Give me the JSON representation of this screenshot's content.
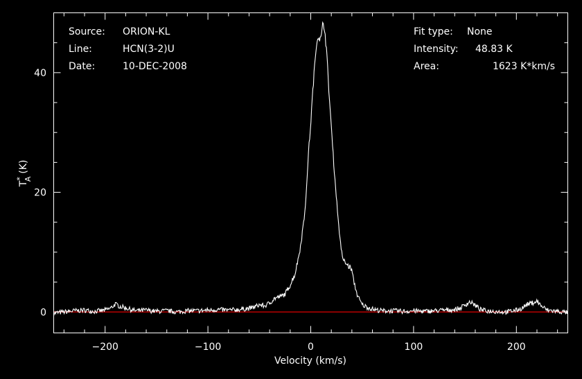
{
  "colors": {
    "background": "#000000",
    "foreground": "#ffffff",
    "spectrum": "#ffffff",
    "baseline": "#dd0000"
  },
  "info": {
    "source_label": "Source:",
    "source_value": "ORION-KL",
    "line_label": "Line:",
    "line_value": "HCN(3-2)U",
    "date_label": "Date:",
    "date_value": "10-DEC-2008",
    "fit_label": "Fit type:",
    "fit_value": "None",
    "intensity_label": "Intensity:",
    "intensity_value": "48.83 K",
    "area_label": "Area:",
    "area_value": "1623 K*km/s"
  },
  "chart_data": {
    "type": "line",
    "xlabel": "Velocity (km/s)",
    "ylabel": "T",
    "ylabel_sup": "*",
    "ylabel_sub": "A",
    "ylabel_unit": "(K)",
    "xlim": [
      -250,
      250
    ],
    "ylim": [
      -3.5,
      50
    ],
    "xticks": [
      -200,
      -100,
      0,
      100,
      200
    ],
    "xtick_labels": [
      "−200",
      "−100",
      "0",
      "100",
      "200"
    ],
    "yticks": [
      0,
      20,
      40
    ],
    "ytick_labels": [
      "0",
      "20",
      "40"
    ],
    "grid": false,
    "legend": "none",
    "baseline_y": 0,
    "series": [
      {
        "x": [
          -250,
          -240,
          -230,
          -220,
          -210,
          -200,
          -195,
          -190,
          -185,
          -180,
          -175,
          -170,
          -160,
          -150,
          -140,
          -130,
          -120,
          -110,
          -100,
          -90,
          -80,
          -70,
          -60,
          -55,
          -50,
          -45,
          -40,
          -35,
          -30,
          -25,
          -20,
          -15,
          -10,
          -8,
          -6,
          -4,
          -2,
          0,
          2,
          4,
          6,
          8,
          10,
          12,
          14,
          16,
          18,
          20,
          22,
          24,
          26,
          28,
          30,
          32,
          35,
          38,
          40,
          42,
          45,
          48,
          50,
          55,
          60,
          65,
          70,
          80,
          90,
          100,
          110,
          120,
          130,
          140,
          145,
          150,
          155,
          160,
          165,
          170,
          180,
          190,
          200,
          205,
          210,
          215,
          220,
          225,
          230,
          240,
          250
        ],
        "y": [
          -0.2,
          0.0,
          0.2,
          0.3,
          0.1,
          0.3,
          0.6,
          1.3,
          0.9,
          0.7,
          0.4,
          0.2,
          0.3,
          0.1,
          0.2,
          0.0,
          0.2,
          0.2,
          0.3,
          0.4,
          0.3,
          0.4,
          0.6,
          0.8,
          1.2,
          1.0,
          1.5,
          2.3,
          2.5,
          3.0,
          4.5,
          6.5,
          11.0,
          13.5,
          16.5,
          21.0,
          27.0,
          31.5,
          37.0,
          41.5,
          45.5,
          46.0,
          45.5,
          48.8,
          46.5,
          42.0,
          36.0,
          31.0,
          26.0,
          21.0,
          17.0,
          13.0,
          10.0,
          8.5,
          8.0,
          7.5,
          7.0,
          5.0,
          3.0,
          1.8,
          1.2,
          0.8,
          0.5,
          0.3,
          0.2,
          0.2,
          0.1,
          0.2,
          0.1,
          0.2,
          0.3,
          0.4,
          0.6,
          1.2,
          1.7,
          1.1,
          0.4,
          0.2,
          0.1,
          0.0,
          0.3,
          0.6,
          1.2,
          1.5,
          1.8,
          0.9,
          0.3,
          0.1,
          -0.1
        ]
      }
    ]
  }
}
